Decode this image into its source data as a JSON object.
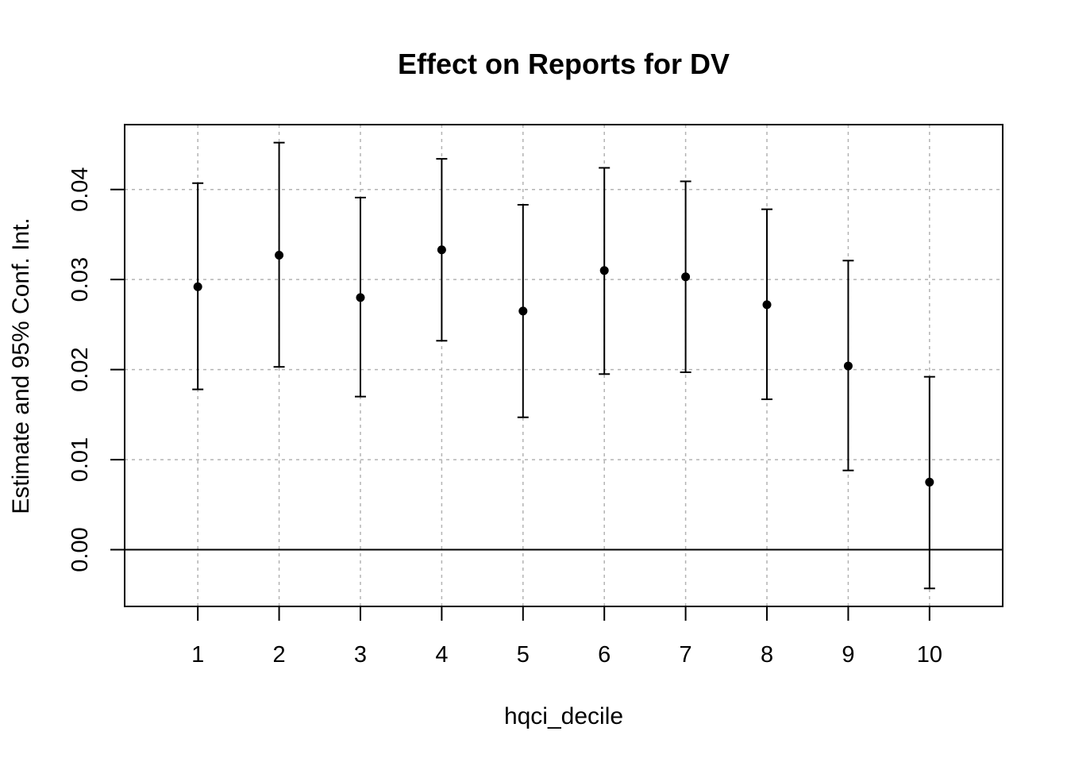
{
  "chart_data": {
    "type": "scatter",
    "title": "Effect on Reports for DV",
    "xlabel": "hqci_decile",
    "ylabel": "Estimate and 95% Conf. Int.",
    "x_tick_labels": [
      "1",
      "2",
      "3",
      "4",
      "5",
      "6",
      "7",
      "8",
      "9",
      "10"
    ],
    "y_tick_labels": [
      "0.00",
      "0.01",
      "0.02",
      "0.03",
      "0.04"
    ],
    "y_ticks": [
      0.0,
      0.01,
      0.02,
      0.03,
      0.04
    ],
    "xlim": [
      0.1,
      10.9
    ],
    "ylim": [
      -0.0063,
      0.0472
    ],
    "grid": true,
    "reference_line_y": 0,
    "series": [
      {
        "x": [
          1,
          2,
          3,
          4,
          5,
          6,
          7,
          8,
          9,
          10
        ],
        "estimate": [
          0.0292,
          0.0327,
          0.028,
          0.0333,
          0.0265,
          0.031,
          0.0303,
          0.0272,
          0.0204,
          0.0075
        ],
        "ci_lower": [
          0.0178,
          0.0203,
          0.017,
          0.0232,
          0.0147,
          0.0195,
          0.0197,
          0.0167,
          0.0088,
          -0.0043
        ],
        "ci_upper": [
          0.0407,
          0.0452,
          0.0391,
          0.0434,
          0.0383,
          0.0424,
          0.0409,
          0.0378,
          0.0321,
          0.0192
        ]
      }
    ],
    "colors": {
      "points": "#000000",
      "grid": "#b3b3b3",
      "axes": "#000000"
    }
  }
}
